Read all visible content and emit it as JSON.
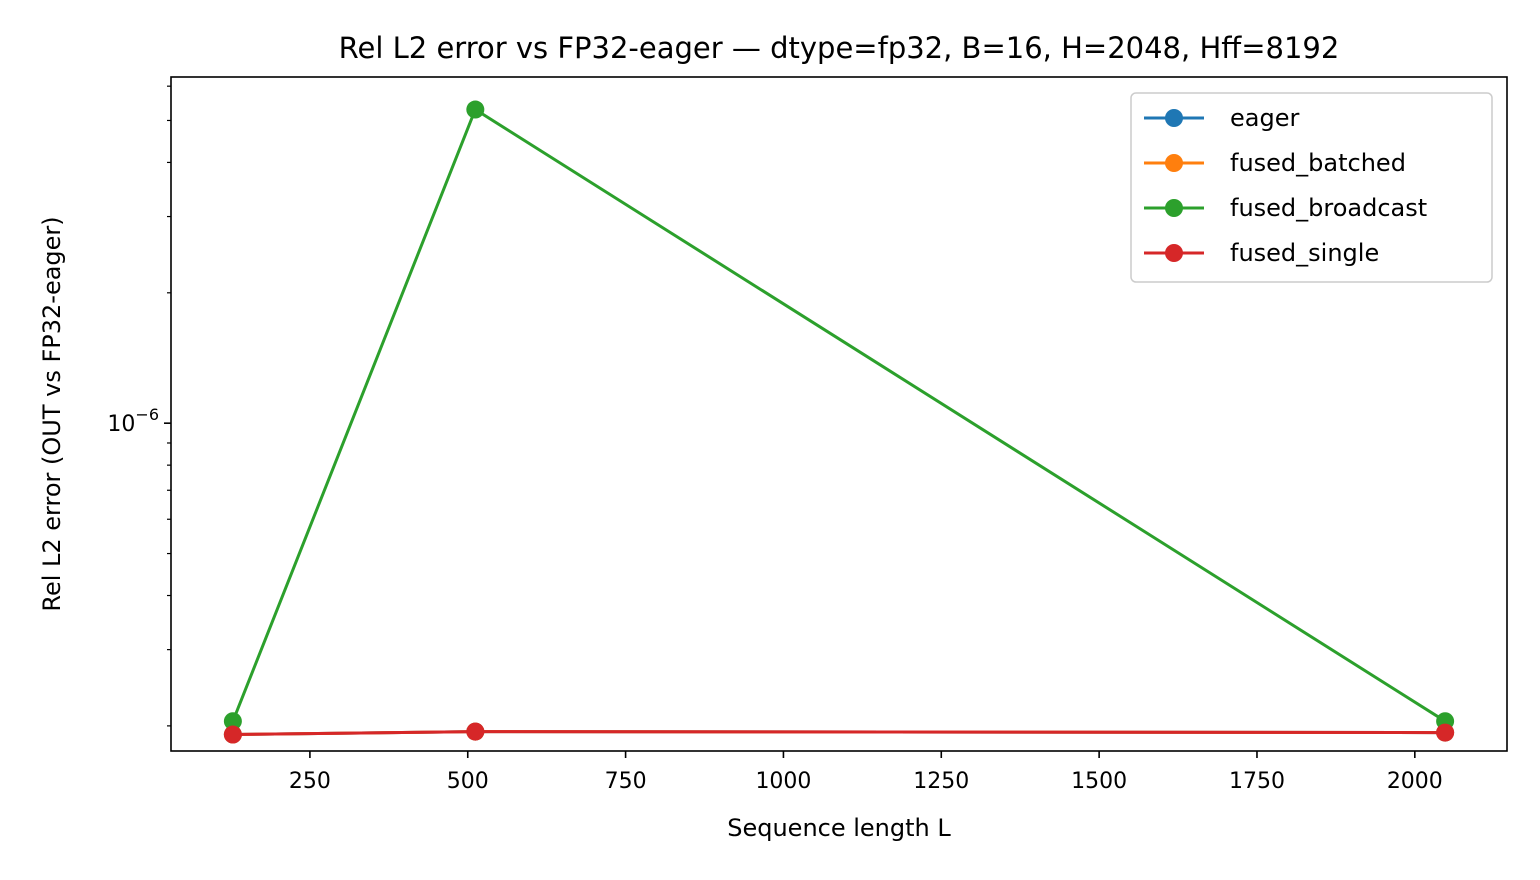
{
  "chart_data": {
    "type": "line",
    "title": "Rel L2 error vs FP32-eager — dtype=fp32, B=16, H=2048, Hff=8192",
    "xlabel": "Sequence length L",
    "ylabel": "Rel L2 error (OUT vs FP32-eager)",
    "x": [
      128,
      512,
      2048
    ],
    "xlim": [
      30,
      2146
    ],
    "ylim": [
      1.75e-07,
      6.3e-06
    ],
    "yscale": "log",
    "xticks": [
      250,
      500,
      750,
      1000,
      1250,
      1500,
      1750,
      2000
    ],
    "xtick_labels": [
      "250",
      "500",
      "750",
      "1000",
      "1250",
      "1500",
      "1750",
      "2000"
    ],
    "ytick_major": {
      "value": 1e-06,
      "base": "10",
      "exponent": "−6"
    },
    "ytick_minor": [
      2e-07,
      3e-07,
      4e-07,
      5e-07,
      6e-07,
      7e-07,
      8e-07,
      9e-07,
      2e-06,
      3e-06,
      4e-06,
      5e-06,
      6e-06
    ],
    "series": [
      {
        "name": "eager",
        "color": "#1f77b4",
        "values": [
          1.91e-07,
          1.94e-07,
          1.93e-07
        ]
      },
      {
        "name": "fused_batched",
        "color": "#ff7f0e",
        "values": [
          1.91e-07,
          1.94e-07,
          1.93e-07
        ]
      },
      {
        "name": "fused_broadcast",
        "color": "#2ca02c",
        "values": [
          2.05e-07,
          5.3e-06,
          2.05e-07
        ]
      },
      {
        "name": "fused_single",
        "color": "#d62728",
        "values": [
          1.91e-07,
          1.94e-07,
          1.93e-07
        ]
      }
    ],
    "legend": "top-right",
    "grid": false
  }
}
